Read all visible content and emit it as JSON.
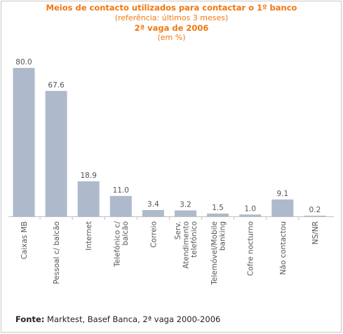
{
  "header": {
    "title": "Meios de contacto utilizados para contactar o 1º banco",
    "subtitle": "(referência: últimos 3 meses)",
    "wave": "2ª vaga de 2006",
    "unit": "(em %)"
  },
  "chart_data": {
    "type": "bar",
    "categories": [
      [
        "Caixas MB"
      ],
      [
        "Pessoal c/ balcão"
      ],
      [
        "Internet"
      ],
      [
        "Telefónico c/",
        "balcão"
      ],
      [
        "Correio"
      ],
      [
        "Serv.",
        "Atendimento",
        "telefónico"
      ],
      [
        "Telemóvel/Mobile",
        "banking"
      ],
      [
        "Cofre nocturno"
      ],
      [
        "Não contactou"
      ],
      [
        "NS/NR"
      ]
    ],
    "values": [
      80.0,
      67.6,
      18.9,
      11.0,
      3.4,
      3.2,
      1.5,
      1.0,
      9.1,
      0.2
    ],
    "value_labels": [
      "80.0",
      "67.6",
      "18.9",
      "11.0",
      "3.4",
      "3.2",
      "1.5",
      "1.0",
      "9.1",
      "0.2"
    ],
    "ylim": [
      0,
      80
    ],
    "grid": false,
    "bar_color": "#aebacb"
  },
  "footer": {
    "source_label": "Fonte:",
    "source_text": " Marktest, Basef Banca, 2ª vaga 2000-2006"
  },
  "colors": {
    "header": "#f07810",
    "axis": "#c0c0c0",
    "label_text": "#555555"
  }
}
